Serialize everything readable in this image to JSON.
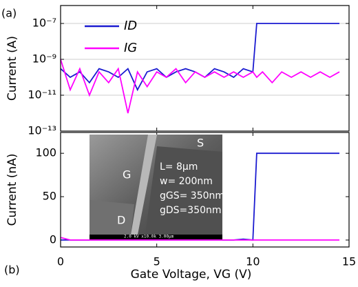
{
  "panel_labels": [
    "(a)",
    "(b)"
  ],
  "inset": {
    "labels": [
      "S",
      "G",
      "D"
    ],
    "notes": [
      "L= 8μm",
      "w= 200nm",
      "gGS= 350nm",
      "gDS=350nm"
    ],
    "caption": "2.0 kV x10.0k 3.00μm"
  },
  "chart_data": [
    {
      "type": "line",
      "ylabel": "Current  (A)",
      "log_y": true,
      "grid": true,
      "legend": "upper-left",
      "xlim": [
        0,
        15
      ],
      "xticks": [
        0,
        5,
        10,
        15
      ],
      "ylim": [
        1e-13,
        1e-06
      ],
      "yticks": [
        {
          "value": 1e-13,
          "label": "10⁻¹³"
        },
        {
          "value": 1e-11,
          "label": "10⁻¹¹"
        },
        {
          "value": 1e-09,
          "label": "10⁻⁹"
        },
        {
          "value": 1e-07,
          "label": "10⁻⁷"
        }
      ],
      "x": [
        0,
        0.5,
        1,
        1.5,
        2,
        2.5,
        3,
        3.5,
        4,
        4.5,
        5,
        5.5,
        6,
        6.5,
        7,
        7.5,
        8,
        8.5,
        9,
        9.5,
        10,
        10.2,
        10.5,
        11,
        11.5,
        12,
        12.5,
        13,
        13.5,
        14,
        14.5
      ],
      "series": [
        {
          "name": "ID",
          "color": "#1a1ad0",
          "values": [
            3e-10,
            1e-10,
            2e-10,
            5e-11,
            3e-10,
            2e-10,
            1e-10,
            3e-10,
            2e-11,
            2e-10,
            3e-10,
            1e-10,
            2e-10,
            3e-10,
            2e-10,
            1e-10,
            3e-10,
            2e-10,
            1e-10,
            3e-10,
            2e-10,
            1e-07,
            1e-07,
            1e-07,
            1e-07,
            1e-07,
            1e-07,
            1e-07,
            1e-07,
            1e-07,
            1e-07
          ]
        },
        {
          "name": "IG",
          "color": "#ff00ff",
          "values": [
            1e-09,
            2e-11,
            3e-10,
            1e-11,
            2e-10,
            5e-11,
            3e-10,
            1e-12,
            2e-10,
            3e-11,
            2e-10,
            1e-10,
            3e-10,
            5e-11,
            2e-10,
            1e-10,
            2e-10,
            1e-10,
            2e-10,
            1e-10,
            2e-10,
            1e-10,
            2e-10,
            5e-11,
            2e-10,
            1e-10,
            2e-10,
            1e-10,
            2e-10,
            1e-10,
            2e-10
          ]
        }
      ]
    },
    {
      "type": "line",
      "ylabel": "Current  (nA)",
      "xlabel": "Gate Voltage, VG (V)",
      "log_y": false,
      "grid": false,
      "xlim": [
        0,
        15
      ],
      "xticks": [
        0,
        5,
        10,
        15
      ],
      "ylim": [
        -8,
        124
      ],
      "yticks": [
        0,
        50,
        100
      ],
      "x": [
        0,
        0.5,
        1,
        1.5,
        2,
        2.5,
        3,
        3.5,
        4,
        4.5,
        5,
        5.5,
        6,
        6.5,
        7,
        7.5,
        8,
        8.5,
        9,
        9.5,
        10,
        10.2,
        10.5,
        11,
        11.5,
        12,
        12.5,
        13,
        13.5,
        14,
        14.5
      ],
      "series": [
        {
          "name": "ID",
          "color": "#1a1ad0",
          "values": [
            0,
            0,
            0,
            0,
            0,
            0,
            0,
            0,
            0,
            0,
            0,
            0,
            0,
            0,
            0,
            0,
            0,
            0,
            0,
            1,
            0,
            100,
            100,
            100,
            100,
            100,
            100,
            100,
            100,
            100,
            100
          ]
        },
        {
          "name": "IG",
          "color": "#ff00ff",
          "values": [
            3,
            0,
            0,
            0,
            0,
            0,
            0,
            0,
            0,
            0,
            0,
            0,
            0,
            0,
            0,
            0,
            0,
            0,
            0,
            0,
            0,
            0,
            0,
            0,
            0,
            0,
            0,
            0,
            0,
            0,
            0
          ]
        }
      ]
    }
  ]
}
